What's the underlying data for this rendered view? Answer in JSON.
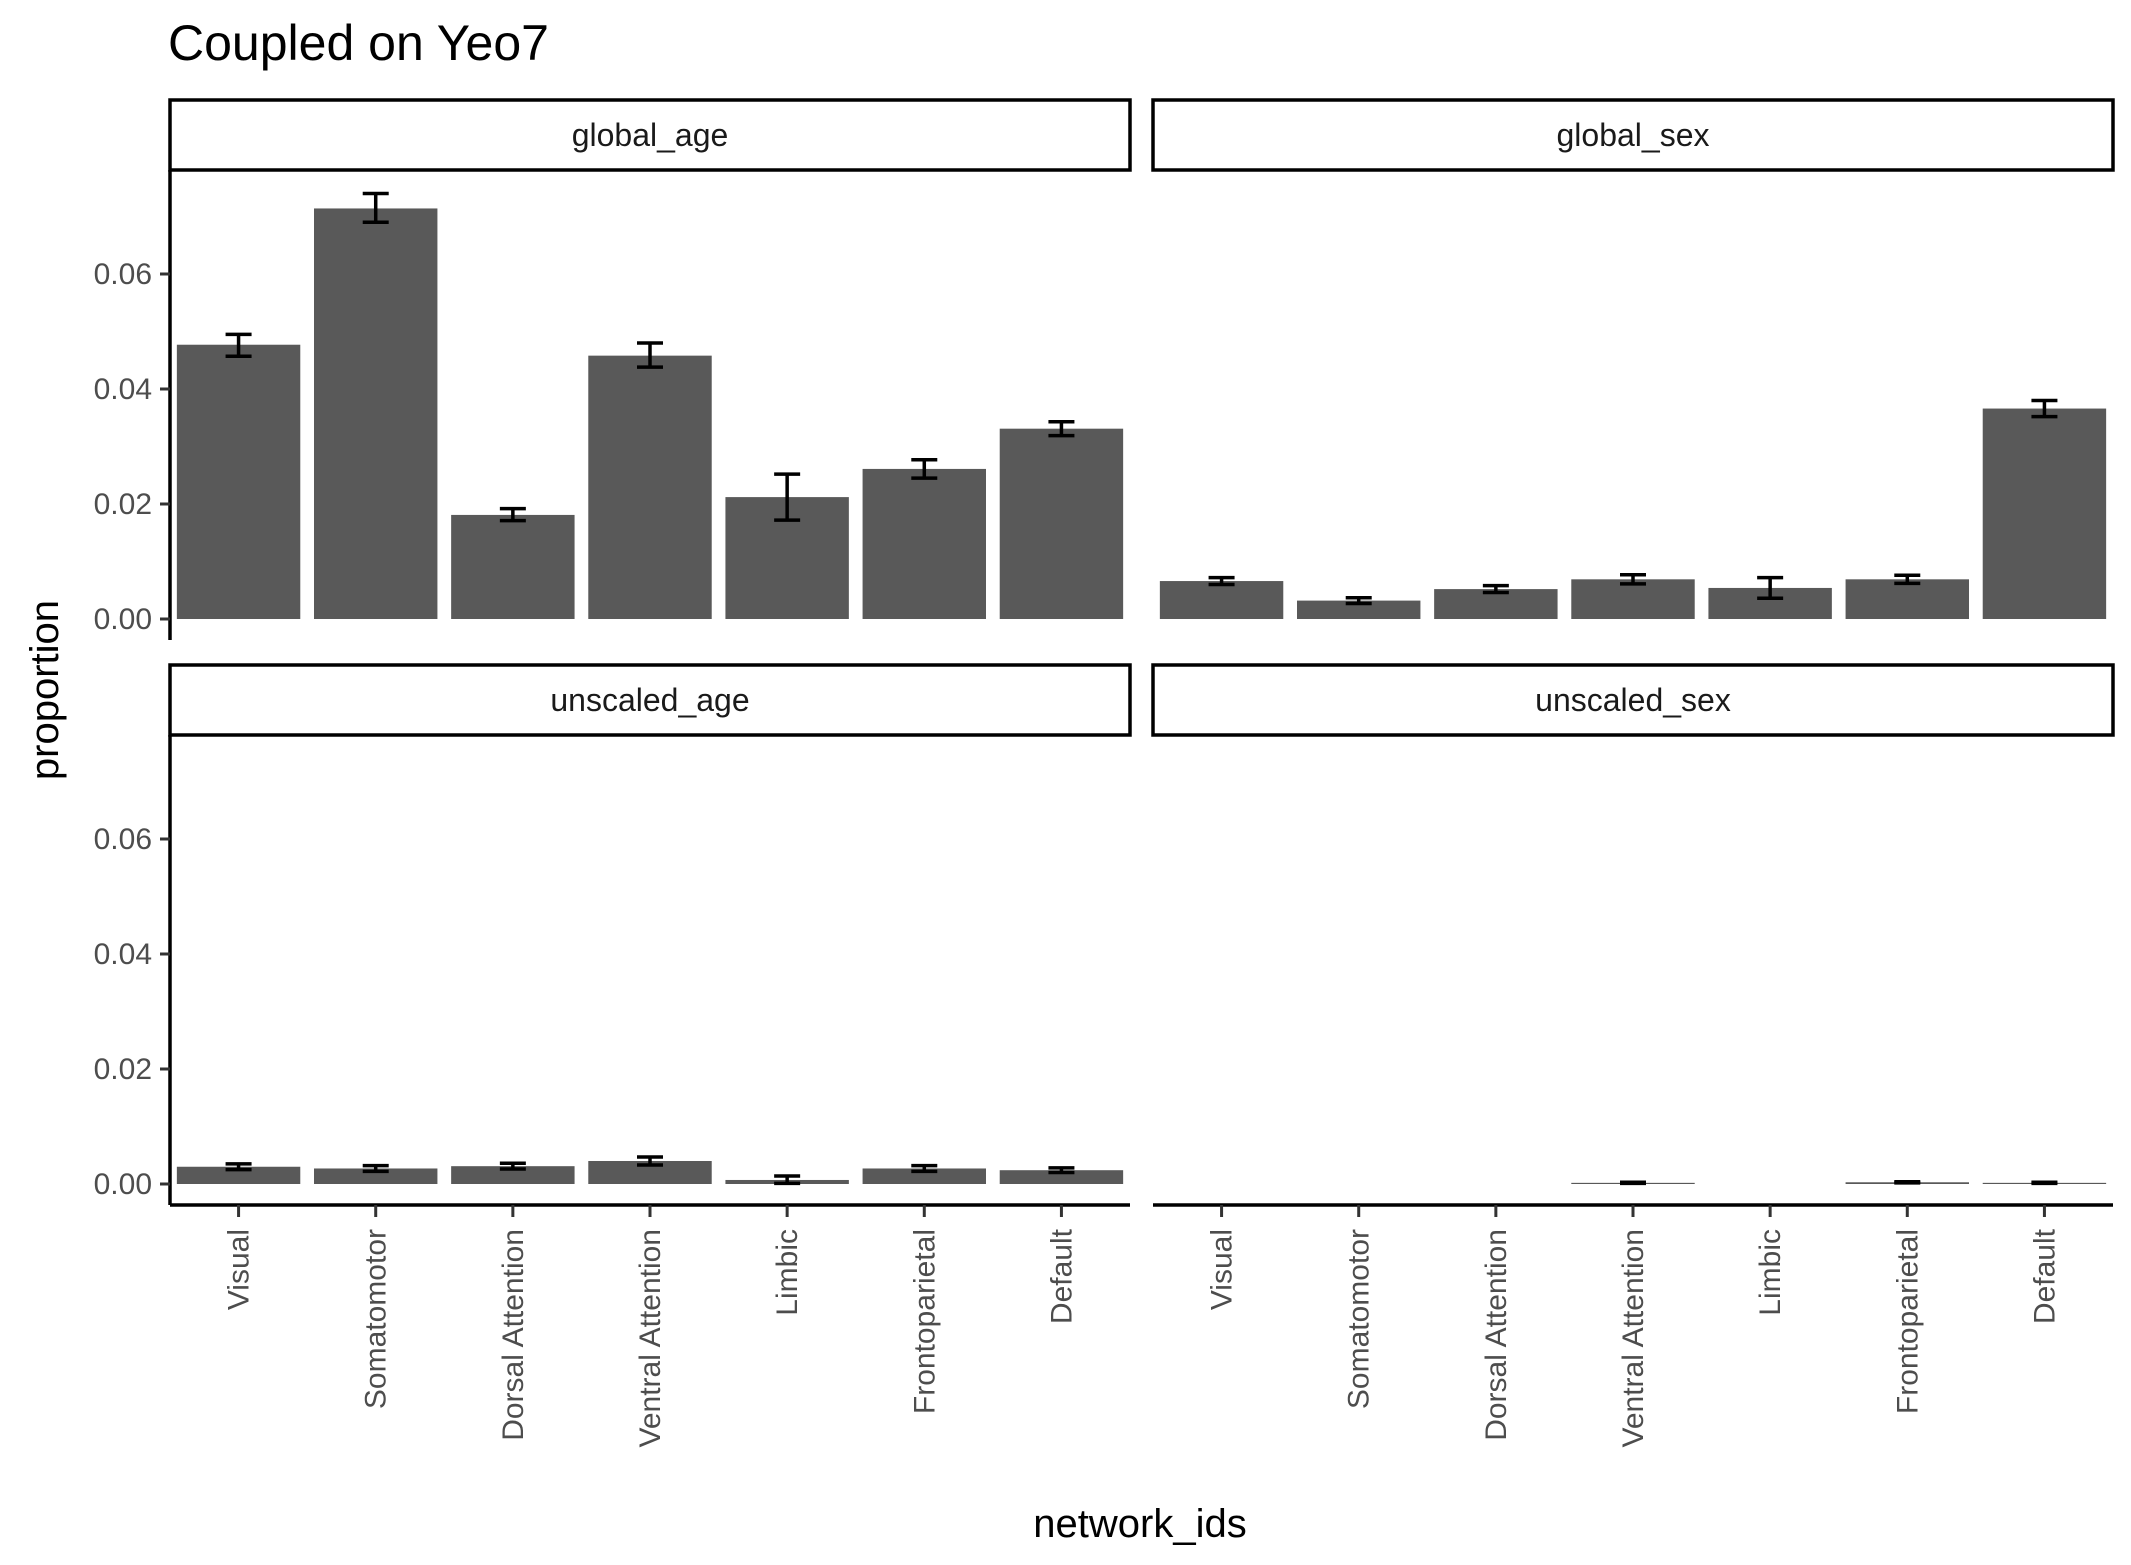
{
  "chart_data": {
    "type": "bar",
    "title": "Coupled on Yeo7",
    "xlabel": "network_ids",
    "ylabel": "proportion",
    "ylim": [
      0,
      0.075
    ],
    "yticks": [
      "0.00",
      "0.02",
      "0.04",
      "0.06"
    ],
    "categories": [
      "Visual",
      "Somatomotor",
      "Dorsal Attention",
      "Ventral Attention",
      "Limbic",
      "Frontoparietal",
      "Default"
    ],
    "bar_color": "#595959",
    "panels": [
      {
        "name": "global_age",
        "values": [
          0.0477,
          0.0714,
          0.0181,
          0.0458,
          0.0212,
          0.0261,
          0.0331
        ],
        "error_low": [
          0.0457,
          0.069,
          0.0171,
          0.0438,
          0.0172,
          0.0245,
          0.0319
        ],
        "error_high": [
          0.0495,
          0.074,
          0.0192,
          0.048,
          0.0252,
          0.0277,
          0.0343
        ]
      },
      {
        "name": "global_sex",
        "values": [
          0.0066,
          0.0032,
          0.0052,
          0.0069,
          0.0054,
          0.0069,
          0.0366
        ],
        "error_low": [
          0.006,
          0.0027,
          0.0046,
          0.0061,
          0.0036,
          0.0062,
          0.0352
        ],
        "error_high": [
          0.0072,
          0.0037,
          0.0058,
          0.0077,
          0.0072,
          0.0076,
          0.038
        ]
      },
      {
        "name": "unscaled_age",
        "values": [
          0.003,
          0.0027,
          0.0031,
          0.004,
          0.0007,
          0.0027,
          0.0024
        ],
        "error_low": [
          0.0025,
          0.0022,
          0.0026,
          0.0033,
          0.0001,
          0.0022,
          0.002
        ],
        "error_high": [
          0.0035,
          0.0032,
          0.0036,
          0.0047,
          0.0014,
          0.0032,
          0.0028
        ]
      },
      {
        "name": "unscaled_sex",
        "values": [
          0,
          0,
          0,
          0.0002,
          0,
          0.0003,
          0.0002
        ],
        "error_low": [
          0,
          0,
          0,
          0.0001,
          0,
          0.0002,
          0.0001
        ],
        "error_high": [
          0,
          0,
          0,
          0.0003,
          0,
          0.0004,
          0.0003
        ]
      }
    ],
    "grid": false,
    "legend": "none"
  }
}
